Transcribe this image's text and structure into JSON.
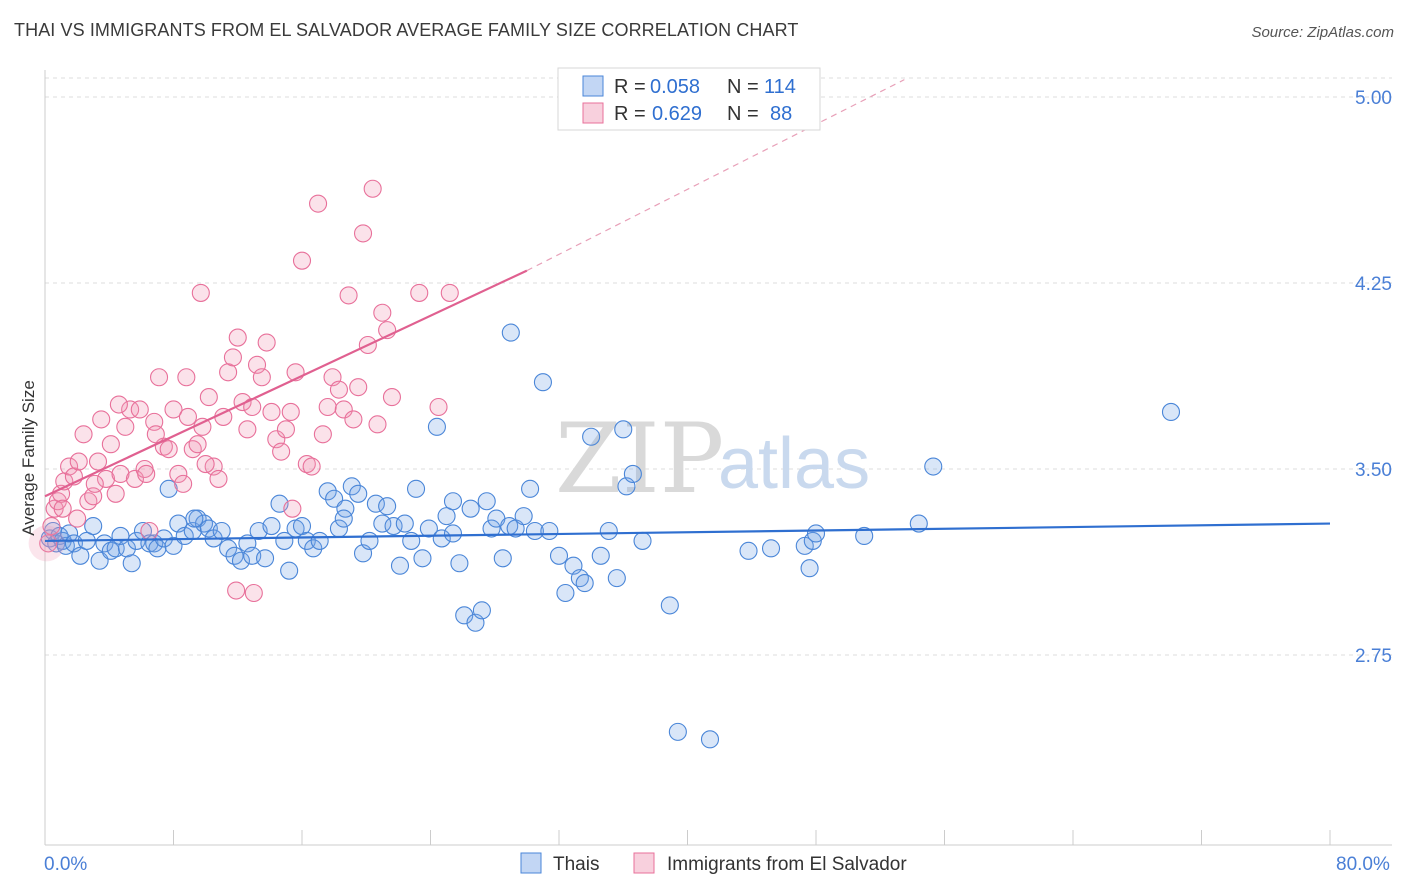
{
  "header": {
    "title": "THAI VS IMMIGRANTS FROM EL SALVADOR AVERAGE FAMILY SIZE CORRELATION CHART",
    "source": "Source: ZipAtlas.com"
  },
  "watermark": {
    "zip": "ZIP",
    "atlas": "atlas"
  },
  "colors": {
    "thai": "#4a86d8",
    "thai_fill": "rgba(120,165,230,0.28)",
    "salvador": "#e8709a",
    "salvador_fill": "rgba(240,150,180,0.28)",
    "axis_label": "#4a7fd6",
    "grid": "#dddddd"
  },
  "legend": {
    "rows": [
      {
        "r_label": "R =",
        "r_value": "0.058",
        "n_label": "N =",
        "n_value": "114"
      },
      {
        "r_label": "R =",
        "r_value": "0.629",
        "n_label": "N =",
        "n_value": "88"
      }
    ],
    "bottom": [
      "Thais",
      "Immigrants from El Salvador"
    ]
  },
  "chart_data": {
    "type": "scatter",
    "title": "THAI VS IMMIGRANTS FROM EL SALVADOR AVERAGE FAMILY SIZE CORRELATION CHART",
    "xlabel": "",
    "ylabel": "Average Family Size",
    "xlim": [
      0,
      80
    ],
    "ylim": [
      2.0,
      5.2
    ],
    "x_tick_labels": [
      "0.0%",
      "80.0%"
    ],
    "y_ticks": [
      2.75,
      3.5,
      4.25,
      5.0
    ],
    "y_tick_labels": [
      "2.75",
      "3.50",
      "4.25",
      "5.00"
    ],
    "grid": "horizontal dashed",
    "legend_position": "top-center",
    "series": [
      {
        "name": "Thais",
        "r": 0.058,
        "n": 114,
        "trend": {
          "x": [
            0,
            80
          ],
          "y": [
            3.21,
            3.28
          ]
        },
        "points": [
          [
            0.3,
            3.22
          ],
          [
            0.5,
            3.25
          ],
          [
            0.7,
            3.2
          ],
          [
            0.9,
            3.23
          ],
          [
            1.1,
            3.21
          ],
          [
            1.3,
            3.19
          ],
          [
            1.5,
            3.24
          ],
          [
            1.8,
            3.2
          ],
          [
            2.2,
            3.15
          ],
          [
            2.6,
            3.21
          ],
          [
            3.0,
            3.27
          ],
          [
            3.4,
            3.13
          ],
          [
            3.7,
            3.2
          ],
          [
            4.1,
            3.17
          ],
          [
            4.4,
            3.18
          ],
          [
            4.7,
            3.23
          ],
          [
            5.1,
            3.18
          ],
          [
            5.4,
            3.12
          ],
          [
            5.7,
            3.21
          ],
          [
            6.1,
            3.25
          ],
          [
            6.5,
            3.2
          ],
          [
            6.8,
            3.2
          ],
          [
            7.0,
            3.18
          ],
          [
            7.4,
            3.22
          ],
          [
            7.7,
            3.42
          ],
          [
            8.0,
            3.19
          ],
          [
            8.3,
            3.28
          ],
          [
            8.7,
            3.23
          ],
          [
            9.2,
            3.25
          ],
          [
            9.5,
            3.3
          ],
          [
            9.9,
            3.28
          ],
          [
            10.2,
            3.26
          ],
          [
            10.5,
            3.22
          ],
          [
            11.0,
            3.25
          ],
          [
            11.4,
            3.18
          ],
          [
            11.8,
            3.15
          ],
          [
            12.2,
            3.13
          ],
          [
            12.6,
            3.2
          ],
          [
            12.9,
            3.15
          ],
          [
            13.3,
            3.25
          ],
          [
            13.7,
            3.14
          ],
          [
            14.1,
            3.27
          ],
          [
            14.6,
            3.36
          ],
          [
            14.9,
            3.21
          ],
          [
            15.2,
            3.09
          ],
          [
            15.6,
            3.26
          ],
          [
            16.0,
            3.27
          ],
          [
            16.3,
            3.21
          ],
          [
            16.7,
            3.18
          ],
          [
            17.1,
            3.21
          ],
          [
            17.6,
            3.41
          ],
          [
            18.0,
            3.38
          ],
          [
            18.3,
            3.26
          ],
          [
            18.7,
            3.34
          ],
          [
            19.1,
            3.43
          ],
          [
            19.5,
            3.4
          ],
          [
            19.8,
            3.16
          ],
          [
            20.2,
            3.21
          ],
          [
            20.6,
            3.36
          ],
          [
            21.0,
            3.28
          ],
          [
            21.3,
            3.35
          ],
          [
            21.7,
            3.27
          ],
          [
            22.1,
            3.11
          ],
          [
            22.4,
            3.28
          ],
          [
            22.8,
            3.21
          ],
          [
            23.1,
            3.42
          ],
          [
            23.5,
            3.14
          ],
          [
            23.9,
            3.26
          ],
          [
            24.4,
            3.67
          ],
          [
            24.7,
            3.22
          ],
          [
            25.0,
            3.31
          ],
          [
            25.4,
            3.37
          ],
          [
            25.8,
            3.12
          ],
          [
            26.1,
            2.91
          ],
          [
            26.5,
            3.34
          ],
          [
            26.8,
            2.88
          ],
          [
            27.2,
            2.93
          ],
          [
            27.5,
            3.37
          ],
          [
            27.8,
            3.26
          ],
          [
            28.1,
            3.3
          ],
          [
            28.5,
            3.14
          ],
          [
            28.9,
            3.27
          ],
          [
            29.3,
            3.26
          ],
          [
            29.8,
            3.31
          ],
          [
            30.2,
            3.42
          ],
          [
            30.5,
            3.25
          ],
          [
            31.0,
            3.85
          ],
          [
            31.4,
            3.25
          ],
          [
            32.0,
            3.15
          ],
          [
            32.4,
            3.0
          ],
          [
            32.9,
            3.11
          ],
          [
            33.3,
            3.06
          ],
          [
            33.6,
            3.04
          ],
          [
            34.0,
            3.63
          ],
          [
            34.6,
            3.15
          ],
          [
            35.1,
            3.25
          ],
          [
            35.6,
            3.06
          ],
          [
            36.0,
            3.66
          ],
          [
            36.2,
            3.43
          ],
          [
            36.6,
            3.48
          ],
          [
            37.2,
            3.21
          ],
          [
            38.9,
            2.95
          ],
          [
            39.4,
            2.44
          ],
          [
            41.4,
            2.41
          ],
          [
            43.8,
            3.17
          ],
          [
            45.2,
            3.18
          ],
          [
            47.3,
            3.19
          ],
          [
            47.6,
            3.1
          ],
          [
            47.8,
            3.21
          ],
          [
            48.0,
            3.24
          ],
          [
            51.0,
            3.23
          ],
          [
            54.4,
            3.28
          ],
          [
            55.3,
            3.51
          ],
          [
            70.1,
            3.73
          ],
          [
            29.0,
            4.05
          ],
          [
            25.4,
            3.24
          ],
          [
            9.3,
            3.3
          ],
          [
            18.6,
            3.3
          ]
        ]
      },
      {
        "name": "Immigrants from El Salvador",
        "r": 0.629,
        "n": 88,
        "trend": {
          "x": [
            0,
            30
          ],
          "y": [
            3.39,
            4.3
          ],
          "extended_to": [
            53.5,
            5.07
          ]
        },
        "points": [
          [
            0.2,
            3.2
          ],
          [
            0.4,
            3.27
          ],
          [
            0.6,
            3.34
          ],
          [
            0.8,
            3.37
          ],
          [
            1.0,
            3.4
          ],
          [
            1.2,
            3.45
          ],
          [
            1.5,
            3.51
          ],
          [
            1.8,
            3.47
          ],
          [
            2.1,
            3.53
          ],
          [
            2.4,
            3.64
          ],
          [
            2.7,
            3.37
          ],
          [
            3.0,
            3.39
          ],
          [
            3.3,
            3.53
          ],
          [
            3.5,
            3.7
          ],
          [
            3.8,
            3.46
          ],
          [
            4.1,
            3.6
          ],
          [
            4.4,
            3.4
          ],
          [
            4.7,
            3.48
          ],
          [
            5.0,
            3.67
          ],
          [
            5.3,
            3.74
          ],
          [
            5.6,
            3.46
          ],
          [
            5.9,
            3.74
          ],
          [
            6.2,
            3.5
          ],
          [
            6.5,
            3.25
          ],
          [
            6.8,
            3.69
          ],
          [
            7.1,
            3.87
          ],
          [
            7.4,
            3.59
          ],
          [
            7.7,
            3.58
          ],
          [
            8.0,
            3.74
          ],
          [
            8.3,
            3.48
          ],
          [
            8.6,
            3.44
          ],
          [
            8.9,
            3.71
          ],
          [
            9.2,
            3.58
          ],
          [
            9.5,
            3.6
          ],
          [
            9.8,
            3.67
          ],
          [
            10.2,
            3.79
          ],
          [
            10.5,
            3.51
          ],
          [
            10.8,
            3.46
          ],
          [
            11.1,
            3.71
          ],
          [
            11.4,
            3.89
          ],
          [
            11.7,
            3.95
          ],
          [
            12.0,
            4.03
          ],
          [
            12.3,
            3.77
          ],
          [
            12.6,
            3.66
          ],
          [
            12.9,
            3.75
          ],
          [
            13.2,
            3.92
          ],
          [
            13.5,
            3.87
          ],
          [
            13.8,
            4.01
          ],
          [
            14.1,
            3.73
          ],
          [
            14.4,
            3.62
          ],
          [
            14.7,
            3.57
          ],
          [
            15.0,
            3.66
          ],
          [
            15.3,
            3.73
          ],
          [
            15.6,
            3.89
          ],
          [
            16.0,
            4.34
          ],
          [
            16.3,
            3.52
          ],
          [
            16.6,
            3.51
          ],
          [
            17.0,
            4.57
          ],
          [
            17.3,
            3.64
          ],
          [
            17.6,
            3.75
          ],
          [
            17.9,
            3.87
          ],
          [
            18.3,
            3.82
          ],
          [
            18.6,
            3.74
          ],
          [
            18.9,
            4.2
          ],
          [
            19.2,
            3.7
          ],
          [
            19.5,
            3.83
          ],
          [
            19.8,
            4.45
          ],
          [
            20.1,
            4.0
          ],
          [
            20.4,
            4.63
          ],
          [
            20.7,
            3.68
          ],
          [
            21.0,
            4.13
          ],
          [
            21.3,
            4.06
          ],
          [
            21.6,
            3.79
          ],
          [
            23.3,
            4.21
          ],
          [
            24.5,
            3.75
          ],
          [
            25.2,
            4.21
          ],
          [
            8.8,
            3.87
          ],
          [
            9.7,
            4.21
          ],
          [
            6.9,
            3.64
          ],
          [
            6.3,
            3.48
          ],
          [
            4.6,
            3.76
          ],
          [
            3.1,
            3.44
          ],
          [
            2.0,
            3.3
          ],
          [
            1.1,
            3.34
          ],
          [
            11.9,
            3.01
          ],
          [
            13.0,
            3.0
          ],
          [
            15.4,
            3.34
          ],
          [
            10.0,
            3.52
          ]
        ]
      }
    ]
  }
}
